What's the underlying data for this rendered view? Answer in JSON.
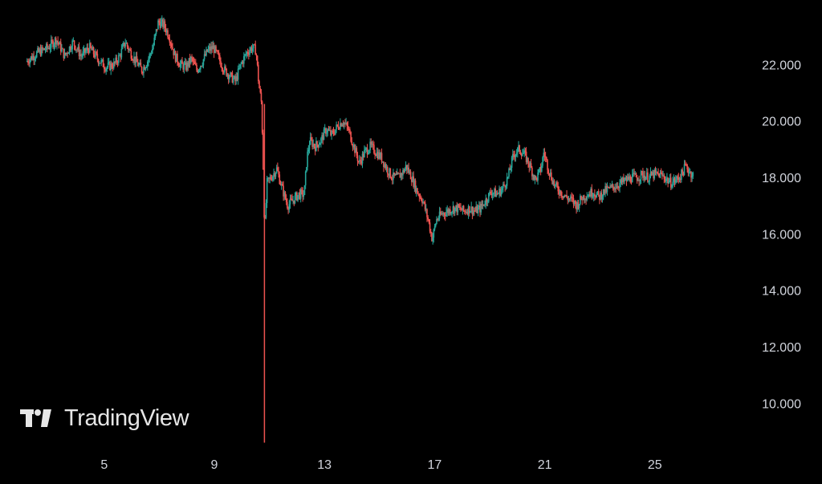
{
  "brand": {
    "name": "TradingView",
    "logo_icon": "tradingview-logo-icon"
  },
  "colors": {
    "background": "#000000",
    "up": "#26a69a",
    "down": "#ef5350",
    "text": "#d1d4dc"
  },
  "chart_data": {
    "type": "candlestick",
    "title": "",
    "xlabel": "",
    "ylabel": "",
    "x_ticks": [
      "5",
      "9",
      "13",
      "17",
      "21",
      "25"
    ],
    "x_tick_days": [
      5,
      9,
      13,
      17,
      21,
      25
    ],
    "y_ticks": [
      "10.000",
      "12.000",
      "14.000",
      "16.000",
      "18.000",
      "20.000",
      "22.000"
    ],
    "y_tick_values": [
      10,
      12,
      14,
      16,
      18,
      20,
      22
    ],
    "xlim": [
      1.8,
      27.6
    ],
    "ylim": [
      8.5,
      24.0
    ],
    "y_axis_side": "right",
    "grid": false,
    "price_path": [
      [
        2.2,
        22.1
      ],
      [
        2.6,
        22.4
      ],
      [
        3.0,
        22.6
      ],
      [
        3.3,
        22.9
      ],
      [
        3.6,
        22.3
      ],
      [
        3.9,
        22.8
      ],
      [
        4.2,
        22.3
      ],
      [
        4.5,
        22.6
      ],
      [
        4.8,
        22.2
      ],
      [
        5.1,
        21.9
      ],
      [
        5.4,
        22.0
      ],
      [
        5.6,
        22.3
      ],
      [
        5.8,
        22.8
      ],
      [
        6.0,
        22.4
      ],
      [
        6.2,
        22.1
      ],
      [
        6.4,
        21.8
      ],
      [
        6.6,
        22.1
      ],
      [
        6.8,
        22.6
      ],
      [
        7.0,
        23.5
      ],
      [
        7.2,
        23.4
      ],
      [
        7.4,
        23.0
      ],
      [
        7.6,
        22.3
      ],
      [
        7.8,
        22.0
      ],
      [
        8.0,
        21.9
      ],
      [
        8.2,
        22.2
      ],
      [
        8.4,
        21.8
      ],
      [
        8.6,
        22.1
      ],
      [
        8.8,
        22.5
      ],
      [
        9.0,
        22.6
      ],
      [
        9.2,
        22.2
      ],
      [
        9.4,
        21.8
      ],
      [
        9.6,
        21.6
      ],
      [
        9.8,
        21.4
      ],
      [
        10.0,
        22.0
      ],
      [
        10.2,
        22.4
      ],
      [
        10.4,
        22.6
      ],
      [
        10.55,
        22.5
      ],
      [
        10.65,
        21.3
      ],
      [
        10.75,
        20.6
      ],
      [
        10.82,
        18.0
      ],
      [
        10.86,
        16.0
      ],
      [
        10.95,
        17.8
      ],
      [
        11.1,
        18.0
      ],
      [
        11.3,
        18.3
      ],
      [
        11.5,
        17.6
      ],
      [
        11.7,
        17.0
      ],
      [
        11.9,
        17.2
      ],
      [
        12.1,
        17.4
      ],
      [
        12.3,
        17.4
      ],
      [
        12.4,
        18.7
      ],
      [
        12.5,
        19.3
      ],
      [
        12.7,
        19.1
      ],
      [
        12.9,
        19.3
      ],
      [
        13.1,
        19.7
      ],
      [
        13.3,
        19.5
      ],
      [
        13.5,
        19.8
      ],
      [
        13.7,
        20.0
      ],
      [
        13.9,
        19.7
      ],
      [
        14.1,
        19.1
      ],
      [
        14.3,
        18.5
      ],
      [
        14.5,
        18.9
      ],
      [
        14.7,
        19.1
      ],
      [
        14.9,
        18.9
      ],
      [
        15.1,
        18.7
      ],
      [
        15.3,
        18.3
      ],
      [
        15.5,
        18.0
      ],
      [
        15.7,
        18.0
      ],
      [
        15.9,
        18.2
      ],
      [
        16.0,
        18.4
      ],
      [
        16.2,
        18.0
      ],
      [
        16.4,
        17.5
      ],
      [
        16.6,
        17.2
      ],
      [
        16.8,
        16.5
      ],
      [
        16.95,
        15.8
      ],
      [
        17.1,
        16.5
      ],
      [
        17.3,
        16.7
      ],
      [
        17.5,
        16.8
      ],
      [
        17.7,
        16.9
      ],
      [
        17.9,
        16.9
      ],
      [
        18.1,
        16.8
      ],
      [
        18.3,
        16.9
      ],
      [
        18.5,
        16.8
      ],
      [
        18.7,
        16.9
      ],
      [
        18.9,
        17.2
      ],
      [
        19.1,
        17.5
      ],
      [
        19.3,
        17.4
      ],
      [
        19.5,
        17.6
      ],
      [
        19.7,
        18.0
      ],
      [
        19.9,
        18.8
      ],
      [
        20.1,
        19.0
      ],
      [
        20.3,
        18.8
      ],
      [
        20.5,
        18.4
      ],
      [
        20.7,
        17.9
      ],
      [
        20.9,
        18.3
      ],
      [
        21.0,
        18.9
      ],
      [
        21.2,
        18.2
      ],
      [
        21.4,
        17.7
      ],
      [
        21.6,
        17.5
      ],
      [
        21.8,
        17.3
      ],
      [
        22.0,
        17.2
      ],
      [
        22.2,
        17.0
      ],
      [
        22.4,
        17.3
      ],
      [
        22.6,
        17.4
      ],
      [
        22.8,
        17.5
      ],
      [
        23.0,
        17.3
      ],
      [
        23.2,
        17.5
      ],
      [
        23.4,
        17.6
      ],
      [
        23.6,
        17.7
      ],
      [
        23.8,
        17.8
      ],
      [
        24.0,
        17.9
      ],
      [
        24.2,
        18.0
      ],
      [
        24.4,
        18.0
      ],
      [
        24.6,
        18.1
      ],
      [
        24.8,
        18.0
      ],
      [
        25.0,
        18.1
      ],
      [
        25.2,
        18.1
      ],
      [
        25.4,
        18.0
      ],
      [
        25.6,
        17.8
      ],
      [
        25.8,
        17.9
      ],
      [
        26.0,
        18.1
      ],
      [
        26.15,
        18.4
      ],
      [
        26.3,
        18.2
      ],
      [
        26.4,
        18.1
      ]
    ]
  }
}
